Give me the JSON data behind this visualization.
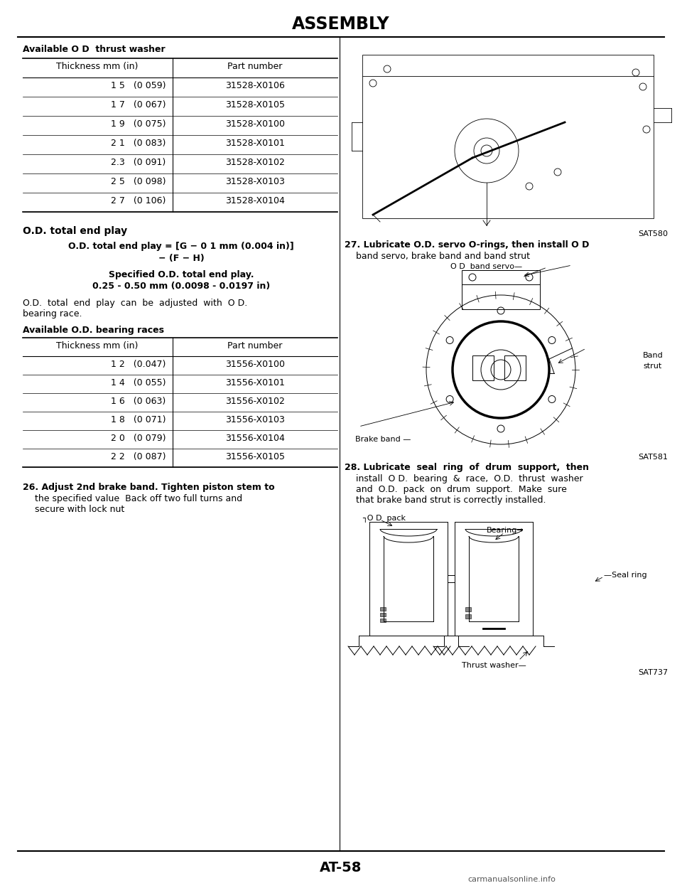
{
  "page_title": "ASSEMBLY",
  "page_number": "AT-58",
  "bg_color": "#ffffff",
  "text_color": "#000000",
  "table1_title": "Available O D  thrust washer",
  "table1_headers": [
    "Thickness mm (in)",
    "Part number"
  ],
  "table1_rows": [
    [
      "1 5   (0 059)",
      "31528-X0106"
    ],
    [
      "1 7   (0 067)",
      "31528-X0105"
    ],
    [
      "1 9   (0 075)",
      "31528-X0100"
    ],
    [
      "2 1   (0 083)",
      "31528-X0101"
    ],
    [
      "2.3   (0 091)",
      "31528-X0102"
    ],
    [
      "2 5   (0 098)",
      "31528-X0103"
    ],
    [
      "2 7   (0 106)",
      "31528-X0104"
    ]
  ],
  "od_section_title": "O.D. total end play",
  "od_specified_label": "Specified O.D. total end play.",
  "od_specified_value": "0.25 - 0.50 mm (0.0098 - 0.0197 in)",
  "table2_title": "Available O.D. bearing races",
  "table2_headers": [
    "Thickness mm (in)",
    "Part number"
  ],
  "table2_rows": [
    [
      "1 2   (0.047)",
      "31556-X0100"
    ],
    [
      "1 4   (0 055)",
      "31556-X0101"
    ],
    [
      "1 6   (0 063)",
      "31556-X0102"
    ],
    [
      "1 8   (0 071)",
      "31556-X0103"
    ],
    [
      "2 0   (0 079)",
      "31556-X0104"
    ],
    [
      "2 2   (0 087)",
      "31556-X0105"
    ]
  ],
  "sat580_label": "SAT580",
  "sat581_label": "SAT581",
  "sat737_label": "SAT737",
  "lw": 0.8
}
